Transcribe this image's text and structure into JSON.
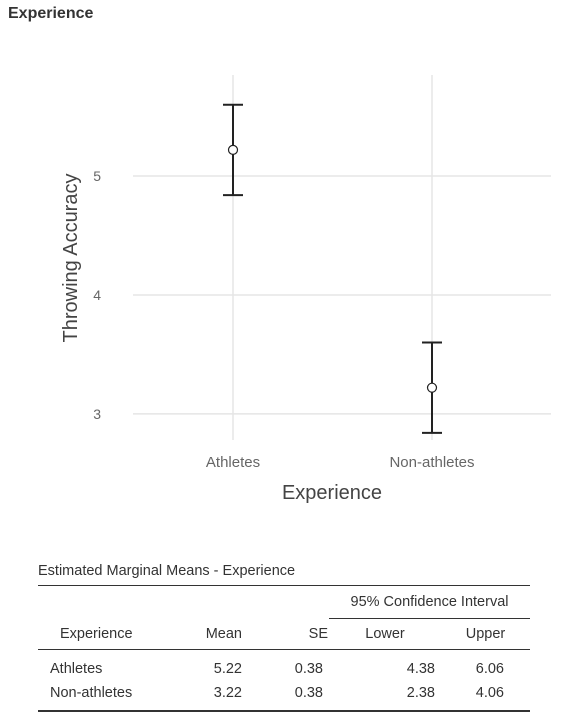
{
  "section_title": "Experience",
  "chart_data": {
    "type": "scatter",
    "xlabel": "Experience",
    "ylabel": "Throwing Accuracy",
    "categories": [
      "Athletes",
      "Non-athletes"
    ],
    "values": [
      5.22,
      3.22
    ],
    "ci_lower": [
      4.84,
      2.84
    ],
    "ci_upper": [
      5.6,
      3.6
    ],
    "yticks": [
      3,
      4,
      5
    ],
    "ylim": [
      2.78,
      5.85
    ],
    "grid": true
  },
  "table": {
    "caption": "Estimated Marginal Means - Experience",
    "ci_header": "95% Confidence Interval",
    "columns": [
      "Experience",
      "Mean",
      "SE",
      "Lower",
      "Upper"
    ],
    "rows": [
      [
        "Athletes",
        "5.22",
        "0.38",
        "4.38",
        "6.06"
      ],
      [
        "Non-athletes",
        "3.22",
        "0.38",
        "2.38",
        "4.06"
      ]
    ]
  },
  "colors": {
    "grid": "#e5e5e5",
    "ink": "#222222",
    "tick_text": "#666666",
    "axis_title": "#444444"
  }
}
